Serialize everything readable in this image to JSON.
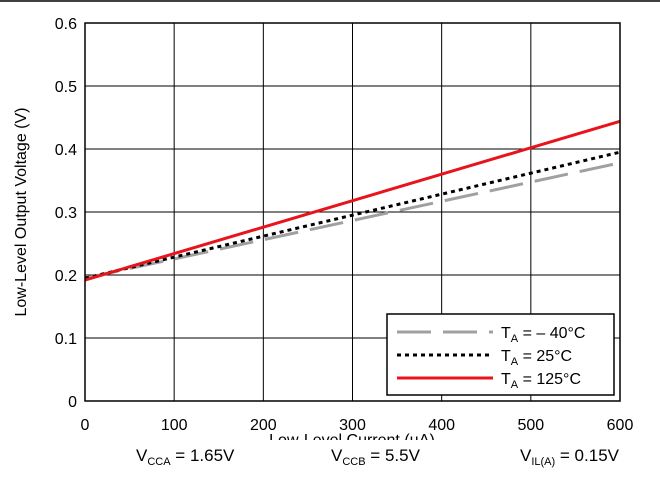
{
  "chart_data": {
    "type": "line",
    "xlabel": "Low-Level Current (µA)",
    "ylabel": "Low-Level Output Voltage (V)",
    "xlim": [
      0,
      600
    ],
    "ylim": [
      0,
      0.6
    ],
    "x_ticks": [
      "0",
      "100",
      "200",
      "300",
      "400",
      "500",
      "600"
    ],
    "y_ticks": [
      "0",
      "0.1",
      "0.2",
      "0.3",
      "0.4",
      "0.5",
      "0.6"
    ],
    "grid": true,
    "legend_position": "bottom-right",
    "series": [
      {
        "name": "T_A = – 40°C",
        "label_main": "T",
        "label_sub": "A",
        "label_rest": " = – 40°C",
        "color": "#a0a0a0",
        "style": "dashed",
        "x": [
          0,
          600
        ],
        "y": [
          0.195,
          0.378
        ]
      },
      {
        "name": "T_A = 25°C",
        "label_main": "T",
        "label_sub": "A",
        "label_rest": " = 25°C",
        "color": "#000000",
        "style": "dotted",
        "x": [
          0,
          600
        ],
        "y": [
          0.195,
          0.395
        ]
      },
      {
        "name": "T_A = 125°C",
        "label_main": "T",
        "label_sub": "A",
        "label_rest": " = 125°C",
        "color": "#e8141c",
        "style": "solid",
        "x": [
          0,
          600
        ],
        "y": [
          0.192,
          0.444
        ]
      }
    ],
    "figure_id": "D001"
  },
  "conditions": [
    {
      "main": "V",
      "sub": "CCA",
      "rest": " = 1.65V"
    },
    {
      "main": "V",
      "sub": "CCB",
      "rest": " = 5.5V"
    },
    {
      "main": "V",
      "sub": "IL(A)",
      "rest": " = 0.15V"
    }
  ]
}
